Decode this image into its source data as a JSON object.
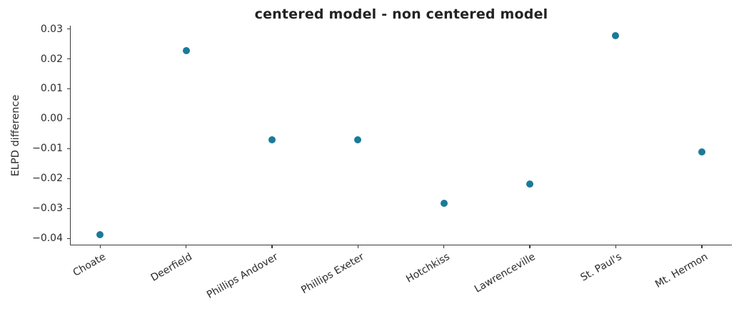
{
  "chart_data": {
    "type": "scatter",
    "title": "centered model - non centered model",
    "xlabel": "",
    "ylabel": "ELPD difference",
    "categories": [
      "Choate",
      "Deerfield",
      "Phillips Andover",
      "Phillips Exeter",
      "Hotchkiss",
      "Lawrenceville",
      "St. Paul's",
      "Mt. Hermon"
    ],
    "values": [
      -0.0387,
      0.0227,
      -0.0071,
      -0.0071,
      -0.0282,
      -0.0219,
      0.0278,
      -0.0112
    ],
    "yticks": [
      0.03,
      0.02,
      0.01,
      0.0,
      -0.01,
      -0.02,
      -0.03,
      -0.04
    ],
    "ylim": [
      -0.0421,
      0.0311
    ],
    "xlim": [
      -0.35,
      7.35
    ],
    "grid": false,
    "legend_position": "none",
    "x_tick_rotation_deg": 30
  },
  "colors": {
    "point": "#1b7a9a",
    "axis": "#3b3b3b",
    "text": "#2b2b2b",
    "title": "#232323",
    "background": "#ffffff"
  }
}
